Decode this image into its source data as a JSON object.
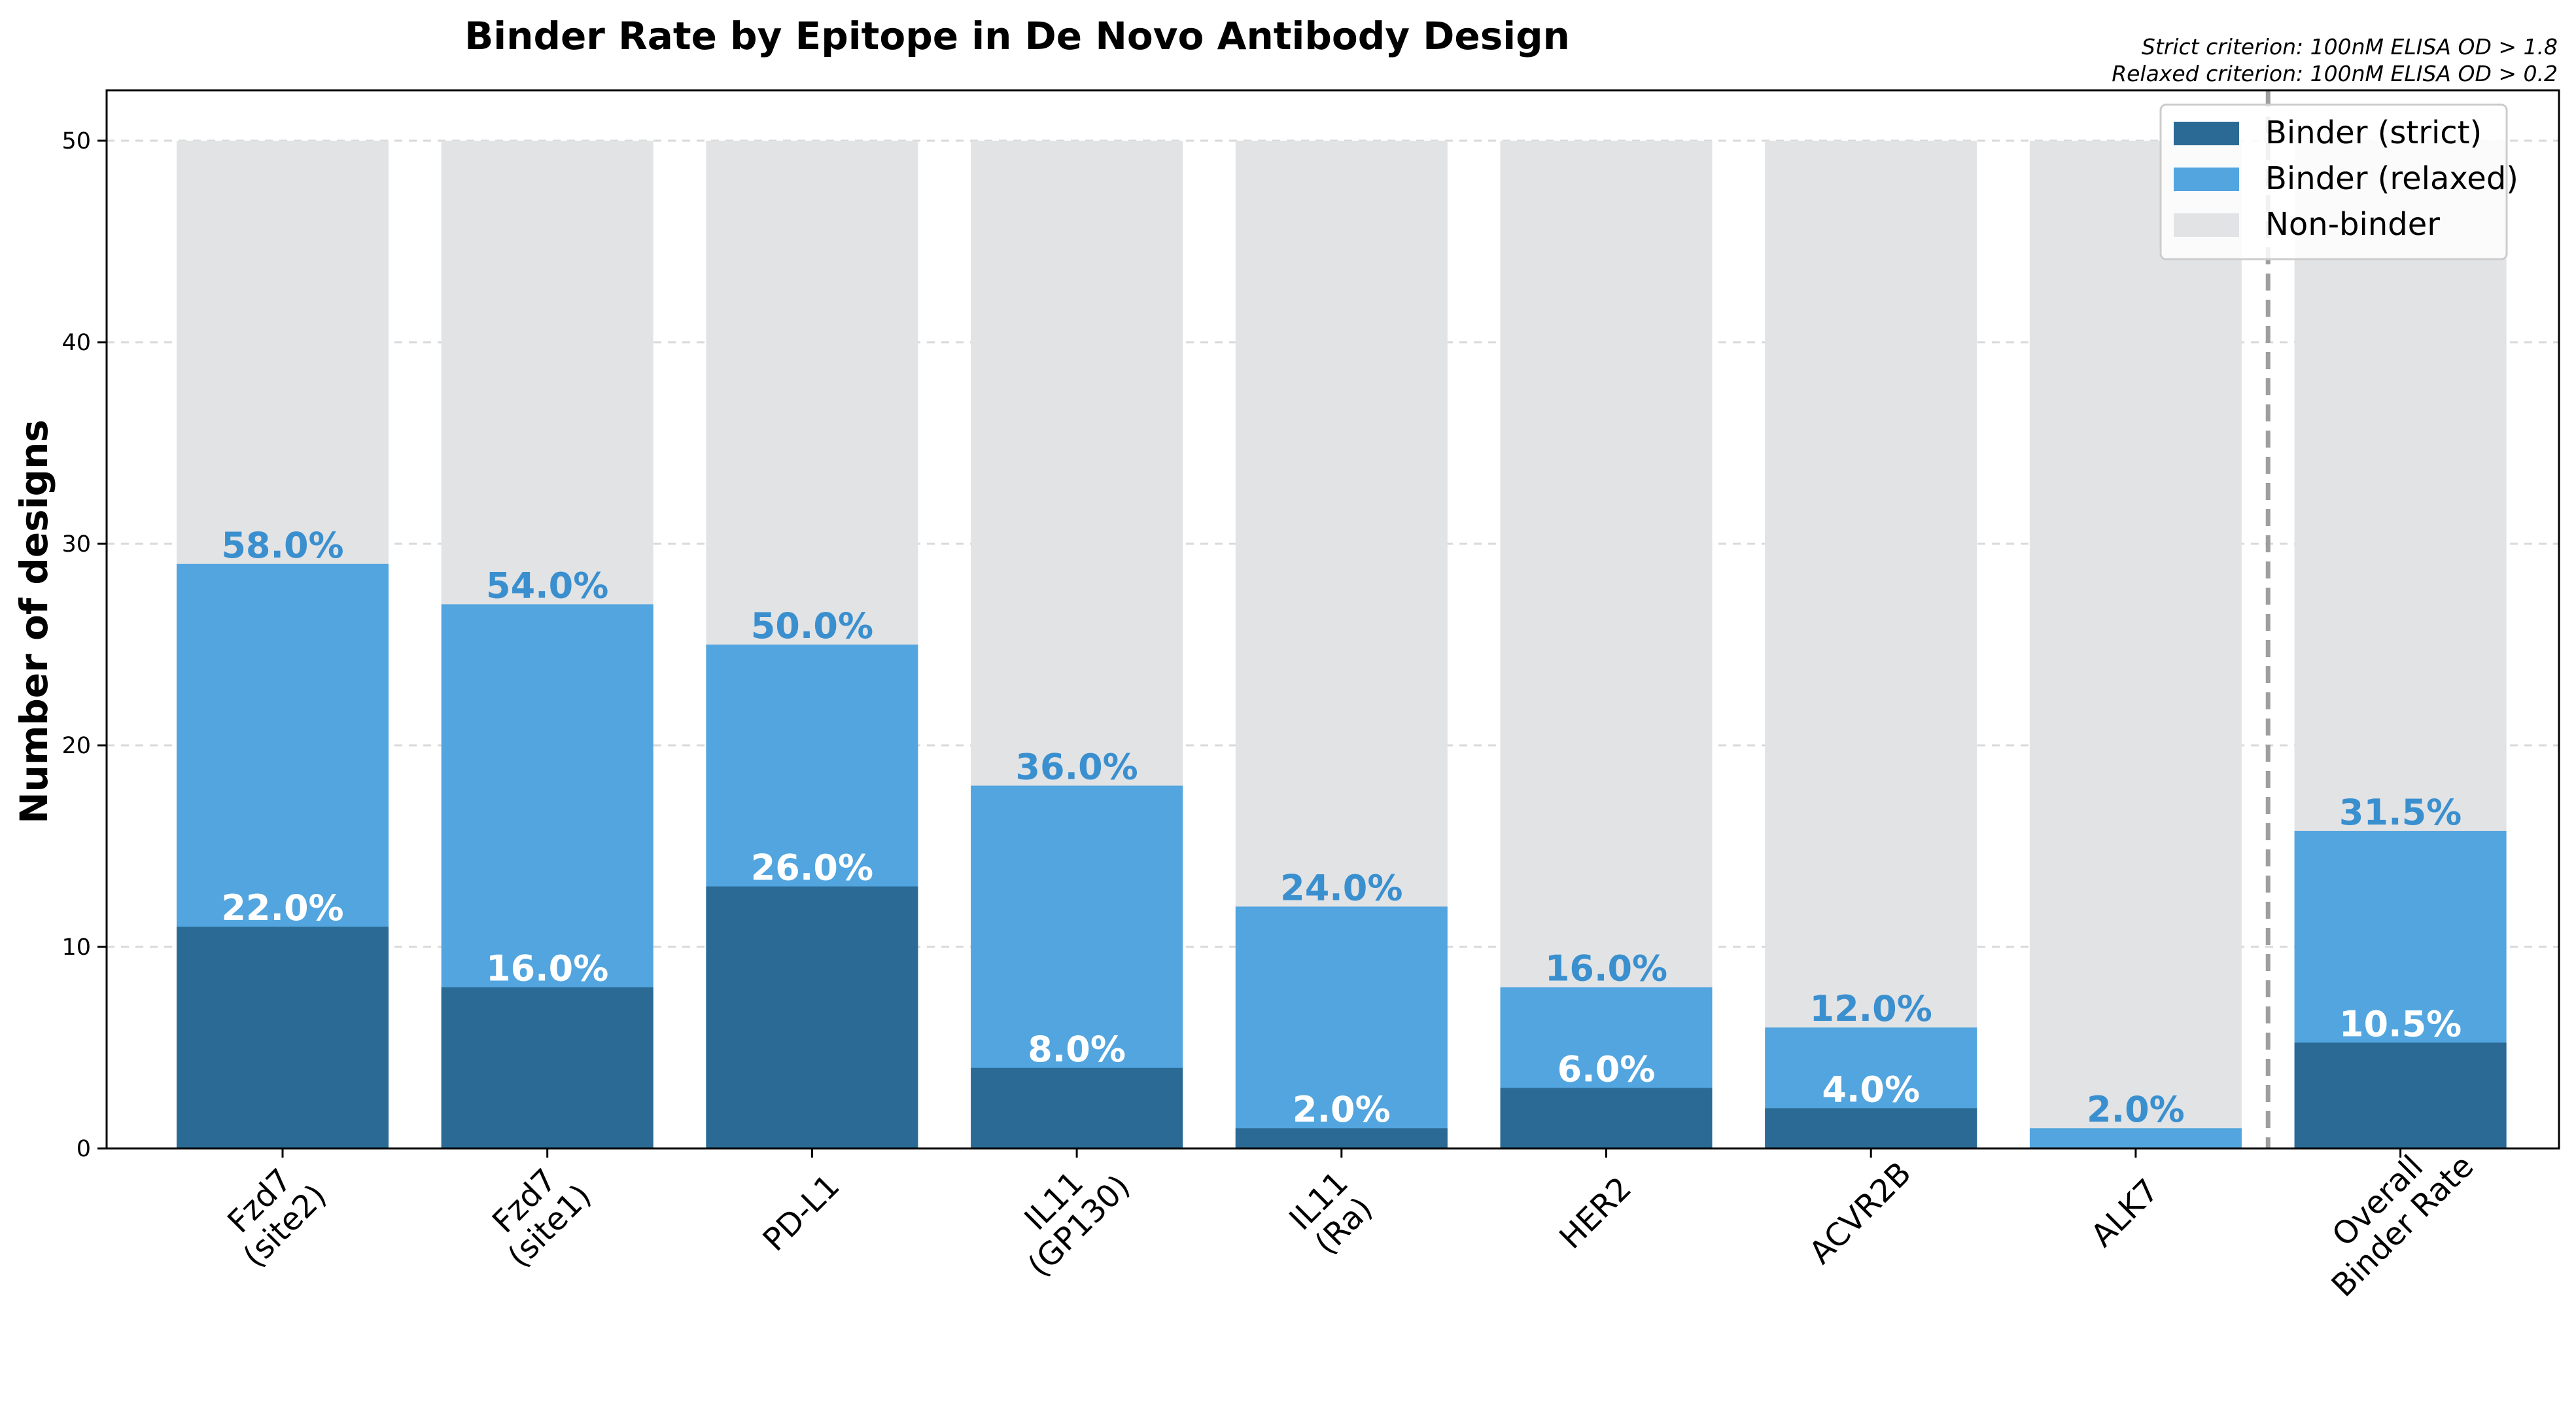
{
  "chart_data": {
    "type": "bar",
    "title": "Binder Rate by Epitope in De Novo Antibody Design",
    "xlabel": "",
    "ylabel": "Number of designs",
    "ylim": [
      0,
      52.5
    ],
    "yticks": [
      "0",
      "10",
      "20",
      "30",
      "40",
      "50"
    ],
    "total_per_category": 50,
    "grid": true,
    "legend_position": "top-right",
    "notes": [
      "Strict criterion: 100nM ELISA OD > 1.8",
      "Relaxed criterion: 100nM ELISA OD > 0.2"
    ],
    "categories": [
      [
        "Fzd7",
        "(site2)"
      ],
      [
        "Fzd7",
        "(site1)"
      ],
      [
        "PD-L1"
      ],
      [
        "IL11",
        "(GP130)"
      ],
      [
        "IL11",
        "(Ra)"
      ],
      [
        "HER2"
      ],
      [
        "ACVR2B"
      ],
      [
        "ALK7"
      ],
      [
        "Overall",
        "Binder Rate"
      ]
    ],
    "series": [
      {
        "name": "Binder (strict)",
        "color": "#2a6a94",
        "values": [
          11,
          8,
          13,
          4,
          1,
          3,
          2,
          0,
          5.25
        ]
      },
      {
        "name": "Binder (relaxed)",
        "color": "#52a5de",
        "values": [
          29,
          27,
          25,
          18,
          12,
          8,
          6,
          1,
          15.75
        ]
      },
      {
        "name": "Non-binder",
        "color": "#e2e3e5",
        "values": [
          50,
          50,
          50,
          50,
          50,
          50,
          50,
          50,
          50
        ]
      }
    ],
    "strict_labels": [
      "22.0%",
      "16.0%",
      "26.0%",
      "8.0%",
      "2.0%",
      "6.0%",
      "4.0%",
      "",
      "10.5%"
    ],
    "relaxed_labels": [
      "58.0%",
      "54.0%",
      "50.0%",
      "36.0%",
      "24.0%",
      "16.0%",
      "12.0%",
      "2.0%",
      "31.5%"
    ],
    "divider_after_index": 7
  },
  "colors": {
    "relaxed_label": "#3a8fcf",
    "divider": "#9e9e9e"
  }
}
